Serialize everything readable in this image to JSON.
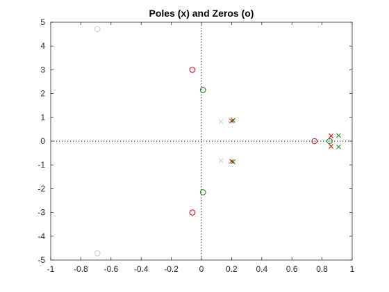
{
  "chart_data": {
    "type": "scatter",
    "title": "Poles (x) and Zeros (o)",
    "xlabel": "",
    "ylabel": "",
    "xlim": [
      -1,
      1
    ],
    "ylim": [
      -5,
      5
    ],
    "x_ticks": [
      -1,
      -0.8,
      -0.6,
      -0.4,
      -0.2,
      0,
      0.2,
      0.4,
      0.6,
      0.8,
      1
    ],
    "x_tick_labels": [
      "-1",
      "-0.8",
      "-0.6",
      "-0.4",
      "-0.2",
      "0",
      "0.2",
      "0.4",
      "0.6",
      "0.8",
      "1"
    ],
    "y_ticks": [
      -5,
      -4,
      -3,
      -2,
      -1,
      0,
      1,
      2,
      3,
      4,
      5
    ],
    "y_tick_labels": [
      "-5",
      "-4",
      "-3",
      "-2",
      "-1",
      "0",
      "1",
      "2",
      "3",
      "4",
      "5"
    ],
    "grid": false,
    "reference_lines": {
      "x": 0,
      "y": 0,
      "style": "dotted"
    },
    "series": [
      {
        "color": "#c8c8c8",
        "zeros": [
          [
            -0.69,
            4.72
          ],
          [
            -0.69,
            -4.72
          ]
        ],
        "poles": [
          [
            0.13,
            0.82
          ],
          [
            0.13,
            -0.82
          ],
          [
            0.86,
            0.0
          ]
        ]
      },
      {
        "color": "#d90000",
        "zeros": [
          [
            -0.06,
            3.0
          ],
          [
            -0.06,
            -3.0
          ],
          [
            0.75,
            0.0
          ]
        ],
        "poles": [
          [
            0.2,
            0.85
          ],
          [
            0.2,
            -0.85
          ],
          [
            0.86,
            0.22
          ],
          [
            0.86,
            -0.22
          ]
        ]
      },
      {
        "color": "#008000",
        "zeros": [
          [
            0.01,
            2.15
          ],
          [
            0.01,
            -2.15
          ],
          [
            0.85,
            0.0
          ]
        ],
        "poles": [
          [
            0.21,
            0.87
          ],
          [
            0.21,
            -0.87
          ],
          [
            0.91,
            0.24
          ],
          [
            0.91,
            -0.24
          ]
        ]
      }
    ]
  }
}
